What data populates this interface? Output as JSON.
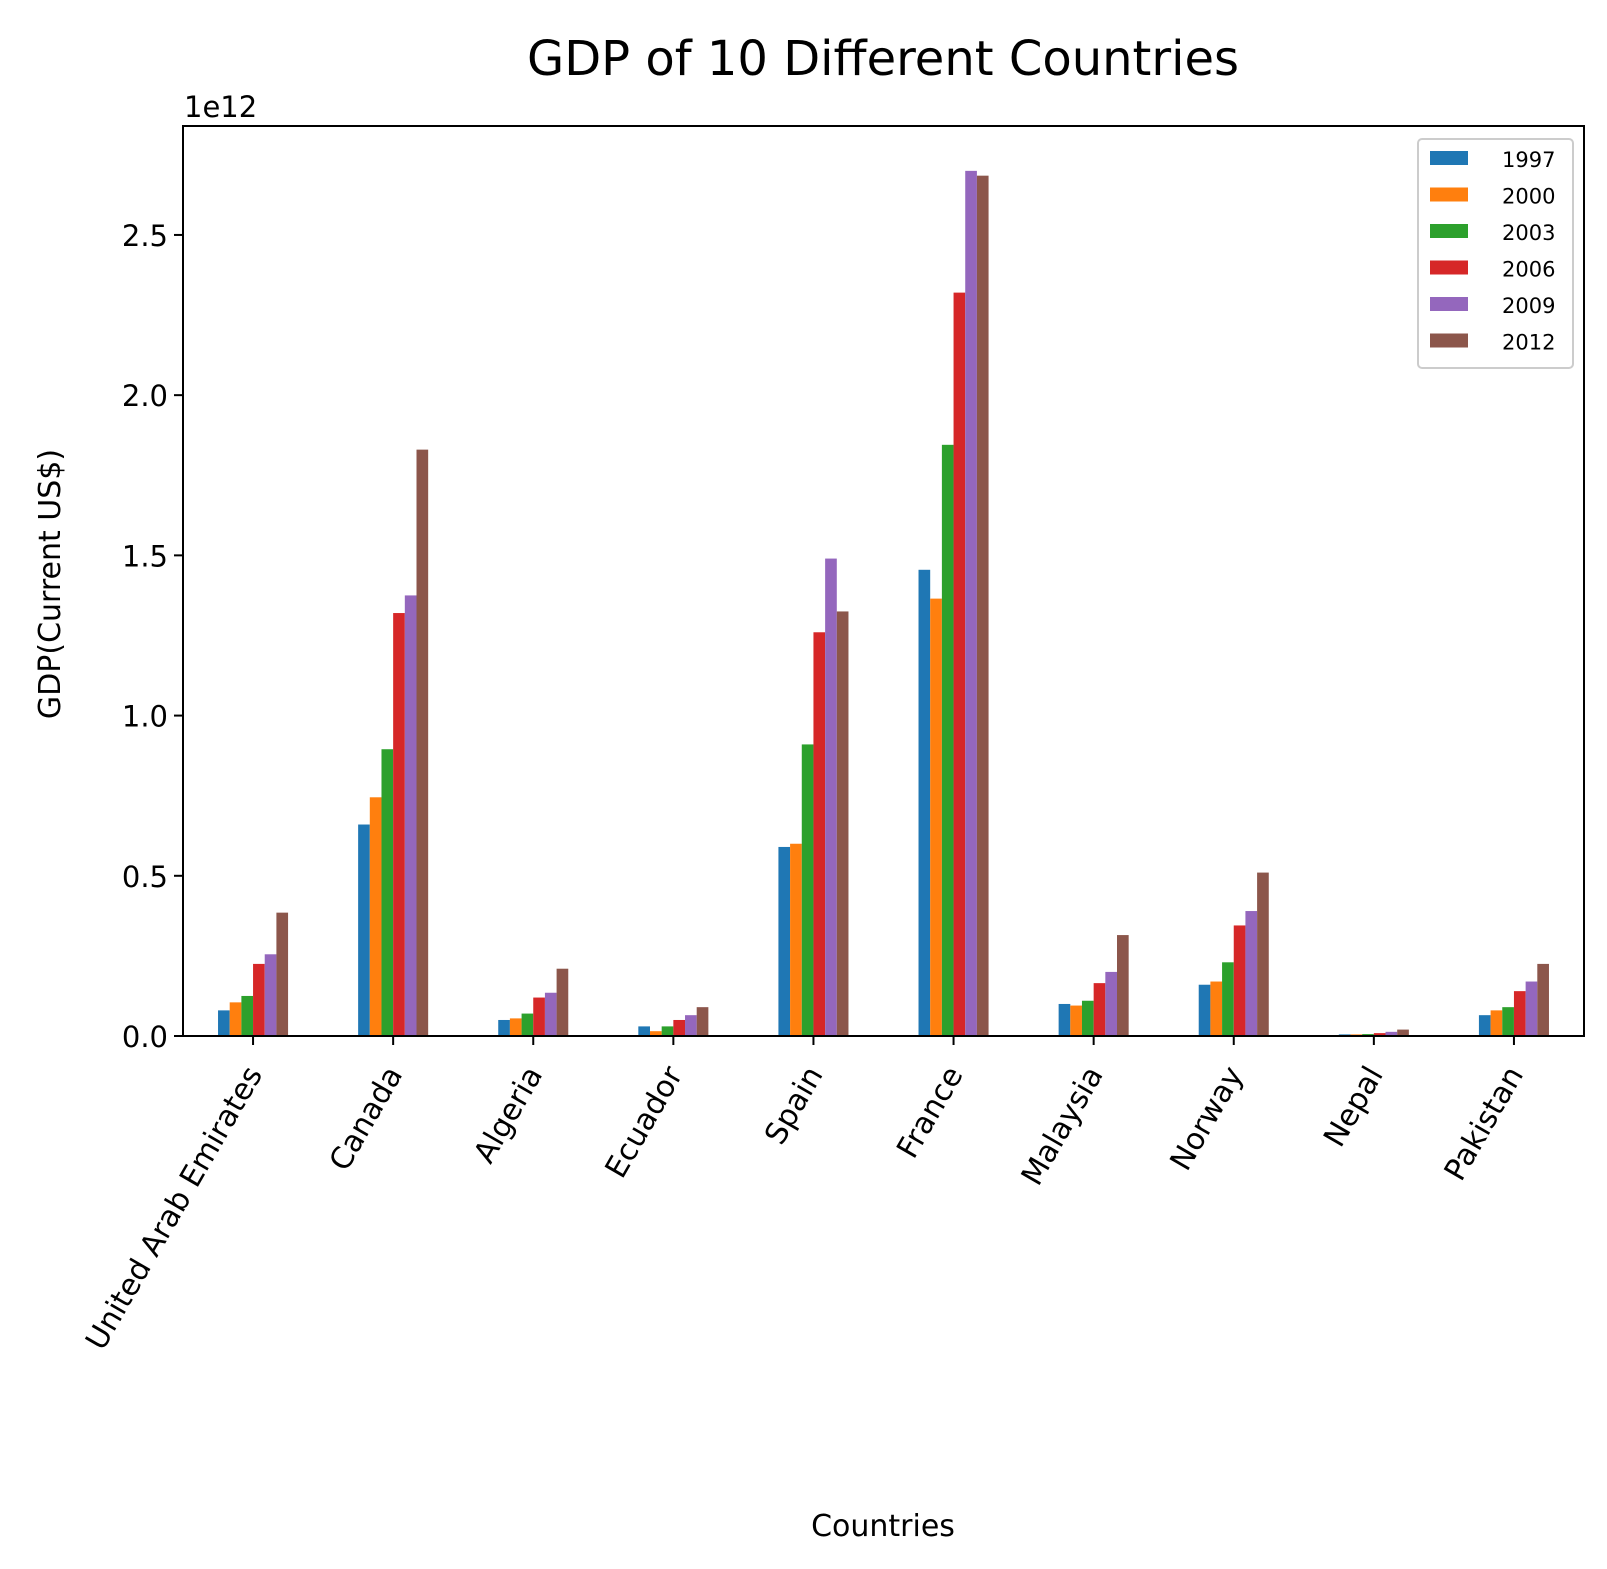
{
  "chart_data": {
    "type": "bar",
    "title": "GDP of 10 Different Countries",
    "xlabel": "Countries",
    "ylabel": "GDP(Current US$)",
    "offset_label": "1e12",
    "y_scale_factor": 1000000000000,
    "ylim": [
      0,
      2.84
    ],
    "yticks": [
      0.0,
      0.5,
      1.0,
      1.5,
      2.0,
      2.5
    ],
    "ytick_labels": [
      "0.0",
      "0.5",
      "1.0",
      "1.5",
      "2.0",
      "2.5"
    ],
    "categories": [
      "United Arab Emirates",
      "Canada",
      "Algeria",
      "Ecuador",
      "Spain",
      "France",
      "Malaysia",
      "Norway",
      "Nepal",
      "Pakistan"
    ],
    "legend_position": "top-right",
    "grid": false,
    "series": [
      {
        "name": "1997",
        "color": "#1f77b4",
        "values": [
          0.08,
          0.66,
          0.05,
          0.03,
          0.59,
          1.455,
          0.1,
          0.16,
          0.005,
          0.065
        ]
      },
      {
        "name": "2000",
        "color": "#ff7f0e",
        "values": [
          0.105,
          0.745,
          0.055,
          0.015,
          0.6,
          1.365,
          0.095,
          0.17,
          0.005,
          0.08
        ]
      },
      {
        "name": "2003",
        "color": "#2ca02c",
        "values": [
          0.125,
          0.895,
          0.07,
          0.03,
          0.91,
          1.845,
          0.11,
          0.23,
          0.006,
          0.09
        ]
      },
      {
        "name": "2006",
        "color": "#d62728",
        "values": [
          0.225,
          1.32,
          0.12,
          0.05,
          1.26,
          2.32,
          0.165,
          0.345,
          0.009,
          0.14
        ]
      },
      {
        "name": "2009",
        "color": "#9467bd",
        "values": [
          0.255,
          1.375,
          0.135,
          0.065,
          1.49,
          2.7,
          0.2,
          0.39,
          0.013,
          0.17
        ]
      },
      {
        "name": "2012",
        "color": "#8c564b",
        "values": [
          0.385,
          1.83,
          0.21,
          0.09,
          1.325,
          2.685,
          0.315,
          0.51,
          0.02,
          0.225
        ]
      }
    ]
  }
}
